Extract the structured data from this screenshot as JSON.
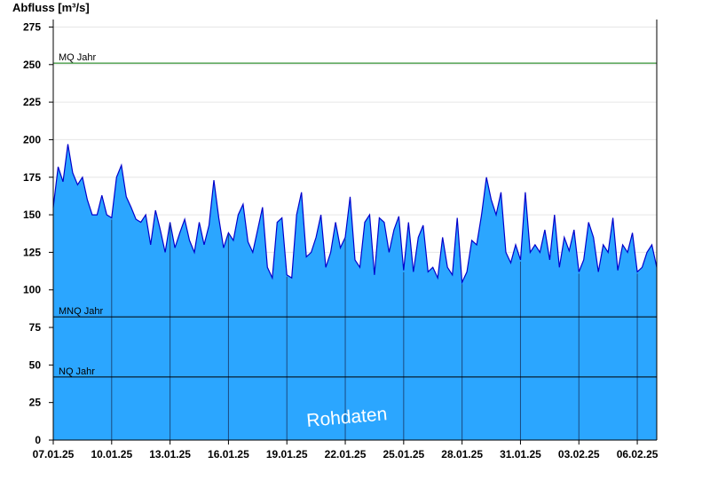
{
  "chart_data": {
    "type": "area",
    "ylabel": "Abfluss [m³/s]",
    "xlabel": "",
    "title": "",
    "ylim": [
      0,
      280
    ],
    "yticks": [
      0,
      25,
      50,
      75,
      100,
      125,
      150,
      175,
      200,
      225,
      250,
      275
    ],
    "xlim": [
      "2025-01-07",
      "2025-02-07"
    ],
    "xticks": [
      "07.01.25",
      "10.01.25",
      "13.01.25",
      "16.01.25",
      "19.01.25",
      "22.01.25",
      "25.01.25",
      "28.01.25",
      "31.01.25",
      "03.02.25",
      "06.02.25"
    ],
    "grid": true,
    "reference_lines": [
      {
        "label": "MQ Jahr",
        "value": 251,
        "color": "#007700"
      },
      {
        "label": "MNQ Jahr",
        "value": 82,
        "color": "#000000"
      },
      {
        "label": "NQ Jahr",
        "value": 42,
        "color": "#000000"
      }
    ],
    "watermark": "Rohdaten",
    "colors": {
      "fill": "#2ba6ff",
      "line": "#0000cc",
      "day_lines": "#1a4a80"
    },
    "series": [
      {
        "x": [
          "2025-01-07T00:00",
          "2025-01-07T06:00",
          "2025-01-07T12:00",
          "2025-01-07T18:00",
          "2025-01-08T00:00",
          "2025-01-08T06:00",
          "2025-01-08T12:00",
          "2025-01-08T18:00",
          "2025-01-09T00:00",
          "2025-01-09T06:00",
          "2025-01-09T12:00",
          "2025-01-09T18:00",
          "2025-01-10T00:00",
          "2025-01-10T06:00",
          "2025-01-10T12:00",
          "2025-01-10T18:00",
          "2025-01-11T00:00",
          "2025-01-11T06:00",
          "2025-01-11T12:00",
          "2025-01-11T18:00",
          "2025-01-12T00:00",
          "2025-01-12T06:00",
          "2025-01-12T12:00",
          "2025-01-12T18:00",
          "2025-01-13T00:00",
          "2025-01-13T06:00",
          "2025-01-13T12:00",
          "2025-01-13T18:00",
          "2025-01-14T00:00",
          "2025-01-14T06:00",
          "2025-01-14T12:00",
          "2025-01-14T18:00",
          "2025-01-15T00:00",
          "2025-01-15T06:00",
          "2025-01-15T12:00",
          "2025-01-15T18:00",
          "2025-01-16T00:00",
          "2025-01-16T06:00",
          "2025-01-16T12:00",
          "2025-01-16T18:00",
          "2025-01-17T00:00",
          "2025-01-17T06:00",
          "2025-01-17T12:00",
          "2025-01-17T18:00",
          "2025-01-18T00:00",
          "2025-01-18T06:00",
          "2025-01-18T12:00",
          "2025-01-18T18:00",
          "2025-01-19T00:00",
          "2025-01-19T06:00",
          "2025-01-19T12:00",
          "2025-01-19T18:00",
          "2025-01-20T00:00",
          "2025-01-20T06:00",
          "2025-01-20T12:00",
          "2025-01-20T18:00",
          "2025-01-21T00:00",
          "2025-01-21T06:00",
          "2025-01-21T12:00",
          "2025-01-21T18:00",
          "2025-01-22T00:00",
          "2025-01-22T06:00",
          "2025-01-22T12:00",
          "2025-01-22T18:00",
          "2025-01-23T00:00",
          "2025-01-23T06:00",
          "2025-01-23T12:00",
          "2025-01-23T18:00",
          "2025-01-24T00:00",
          "2025-01-24T06:00",
          "2025-01-24T12:00",
          "2025-01-24T18:00",
          "2025-01-25T00:00",
          "2025-01-25T06:00",
          "2025-01-25T12:00",
          "2025-01-25T18:00",
          "2025-01-26T00:00",
          "2025-01-26T06:00",
          "2025-01-26T12:00",
          "2025-01-26T18:00",
          "2025-01-27T00:00",
          "2025-01-27T06:00",
          "2025-01-27T12:00",
          "2025-01-27T18:00",
          "2025-01-28T00:00",
          "2025-01-28T06:00",
          "2025-01-28T12:00",
          "2025-01-28T18:00",
          "2025-01-29T00:00",
          "2025-01-29T06:00",
          "2025-01-29T12:00",
          "2025-01-29T18:00",
          "2025-01-30T00:00",
          "2025-01-30T06:00",
          "2025-01-30T12:00",
          "2025-01-30T18:00",
          "2025-01-31T00:00",
          "2025-01-31T06:00",
          "2025-01-31T12:00",
          "2025-01-31T18:00",
          "2025-02-01T00:00",
          "2025-02-01T06:00",
          "2025-02-01T12:00",
          "2025-02-01T18:00",
          "2025-02-02T00:00",
          "2025-02-02T06:00",
          "2025-02-02T12:00",
          "2025-02-02T18:00",
          "2025-02-03T00:00",
          "2025-02-03T06:00",
          "2025-02-03T12:00",
          "2025-02-03T18:00",
          "2025-02-04T00:00",
          "2025-02-04T06:00",
          "2025-02-04T12:00",
          "2025-02-04T18:00",
          "2025-02-05T00:00",
          "2025-02-05T06:00",
          "2025-02-05T12:00",
          "2025-02-05T18:00",
          "2025-02-06T00:00",
          "2025-02-06T06:00",
          "2025-02-06T12:00",
          "2025-02-06T18:00",
          "2025-02-07T00:00"
        ],
        "values": [
          155,
          182,
          172,
          197,
          178,
          170,
          175,
          160,
          150,
          150,
          163,
          150,
          148,
          175,
          183,
          162,
          155,
          147,
          145,
          150,
          130,
          153,
          140,
          125,
          145,
          128,
          138,
          147,
          133,
          125,
          145,
          130,
          143,
          173,
          148,
          128,
          138,
          133,
          150,
          157,
          132,
          125,
          140,
          155,
          115,
          108,
          145,
          148,
          110,
          108,
          150,
          165,
          122,
          125,
          135,
          150,
          115,
          125,
          145,
          128,
          135,
          162,
          120,
          115,
          145,
          150,
          110,
          148,
          145,
          125,
          140,
          149,
          113,
          145,
          112,
          135,
          143,
          112,
          115,
          108,
          135,
          115,
          110,
          148,
          105,
          112,
          133,
          130,
          150,
          175,
          160,
          150,
          165,
          125,
          118,
          130,
          120,
          165,
          125,
          130,
          125,
          140,
          120,
          150,
          115,
          135,
          126,
          140,
          112,
          120,
          145,
          135,
          112,
          130,
          125,
          148,
          113,
          130,
          125,
          138,
          112,
          115,
          125,
          130,
          115
        ]
      }
    ]
  }
}
